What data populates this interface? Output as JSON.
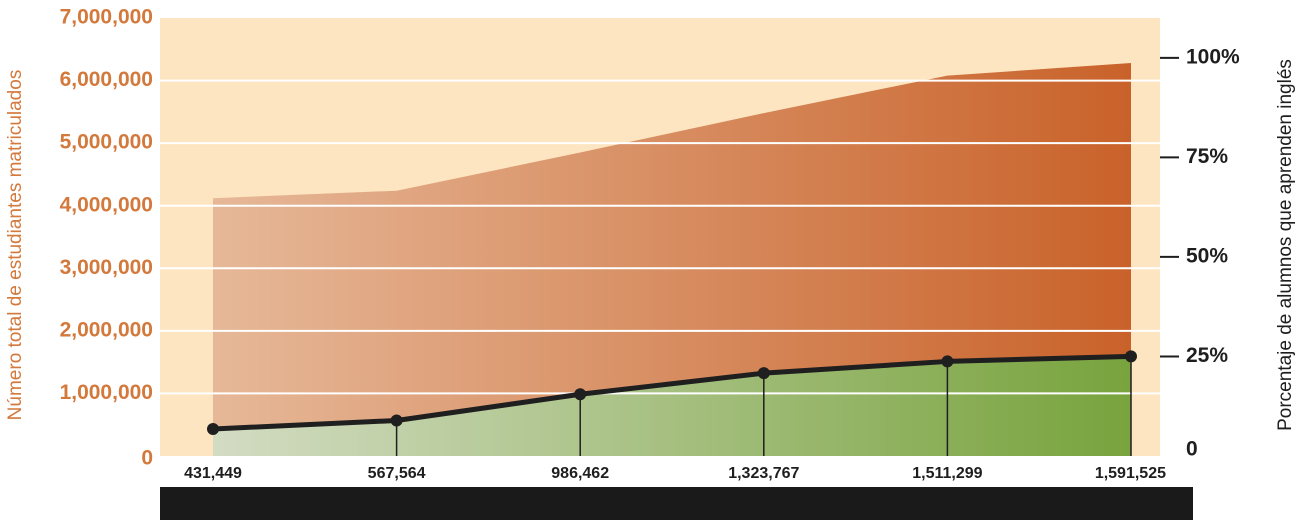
{
  "chart_data": {
    "type": "area",
    "categories": [
      "431,449",
      "567,564",
      "986,462",
      "1,323,767",
      "1,511,299",
      "1,591,525"
    ],
    "series": [
      {
        "values": [
          4120000,
          4240000,
          4850000,
          5480000,
          6080000,
          6280000
        ]
      },
      {
        "values": [
          431449,
          567564,
          986462,
          1323767,
          1511299,
          1591525
        ]
      }
    ],
    "ylabel": "Número total de estudiantes matriculados",
    "ylabel_right": "Porcentaje de alumnos que aprenden inglés",
    "ylim": [
      0,
      7000000
    ],
    "yticks": [
      {
        "value": 0,
        "label": "0"
      },
      {
        "value": 1000000,
        "label": "1,000,000"
      },
      {
        "value": 2000000,
        "label": "2,000,000"
      },
      {
        "value": 3000000,
        "label": "3,000,000"
      },
      {
        "value": 4000000,
        "label": "4,000,000"
      },
      {
        "value": 5000000,
        "label": "5,000,000"
      },
      {
        "value": 6000000,
        "label": "6,000,000"
      },
      {
        "value": 7000000,
        "label": "7,000,000"
      }
    ],
    "ylim_right": [
      0,
      110
    ],
    "yticks_right": [
      {
        "value": 0,
        "label": "0"
      },
      {
        "value": 25,
        "label": "25%"
      },
      {
        "value": 50,
        "label": "50%"
      },
      {
        "value": 75,
        "label": "75%"
      },
      {
        "value": 100,
        "label": "100%"
      }
    ],
    "grid": true,
    "colors": {
      "background": "#fde5c1",
      "total_start": "#e6b898",
      "total_end": "#c9622a",
      "ell_start": "#d3dcc3",
      "ell_end": "#78a33d",
      "line": "#1f1f1f",
      "left_axis_text": "#d3793c",
      "bottom_bar": "#1a1a1a"
    }
  }
}
